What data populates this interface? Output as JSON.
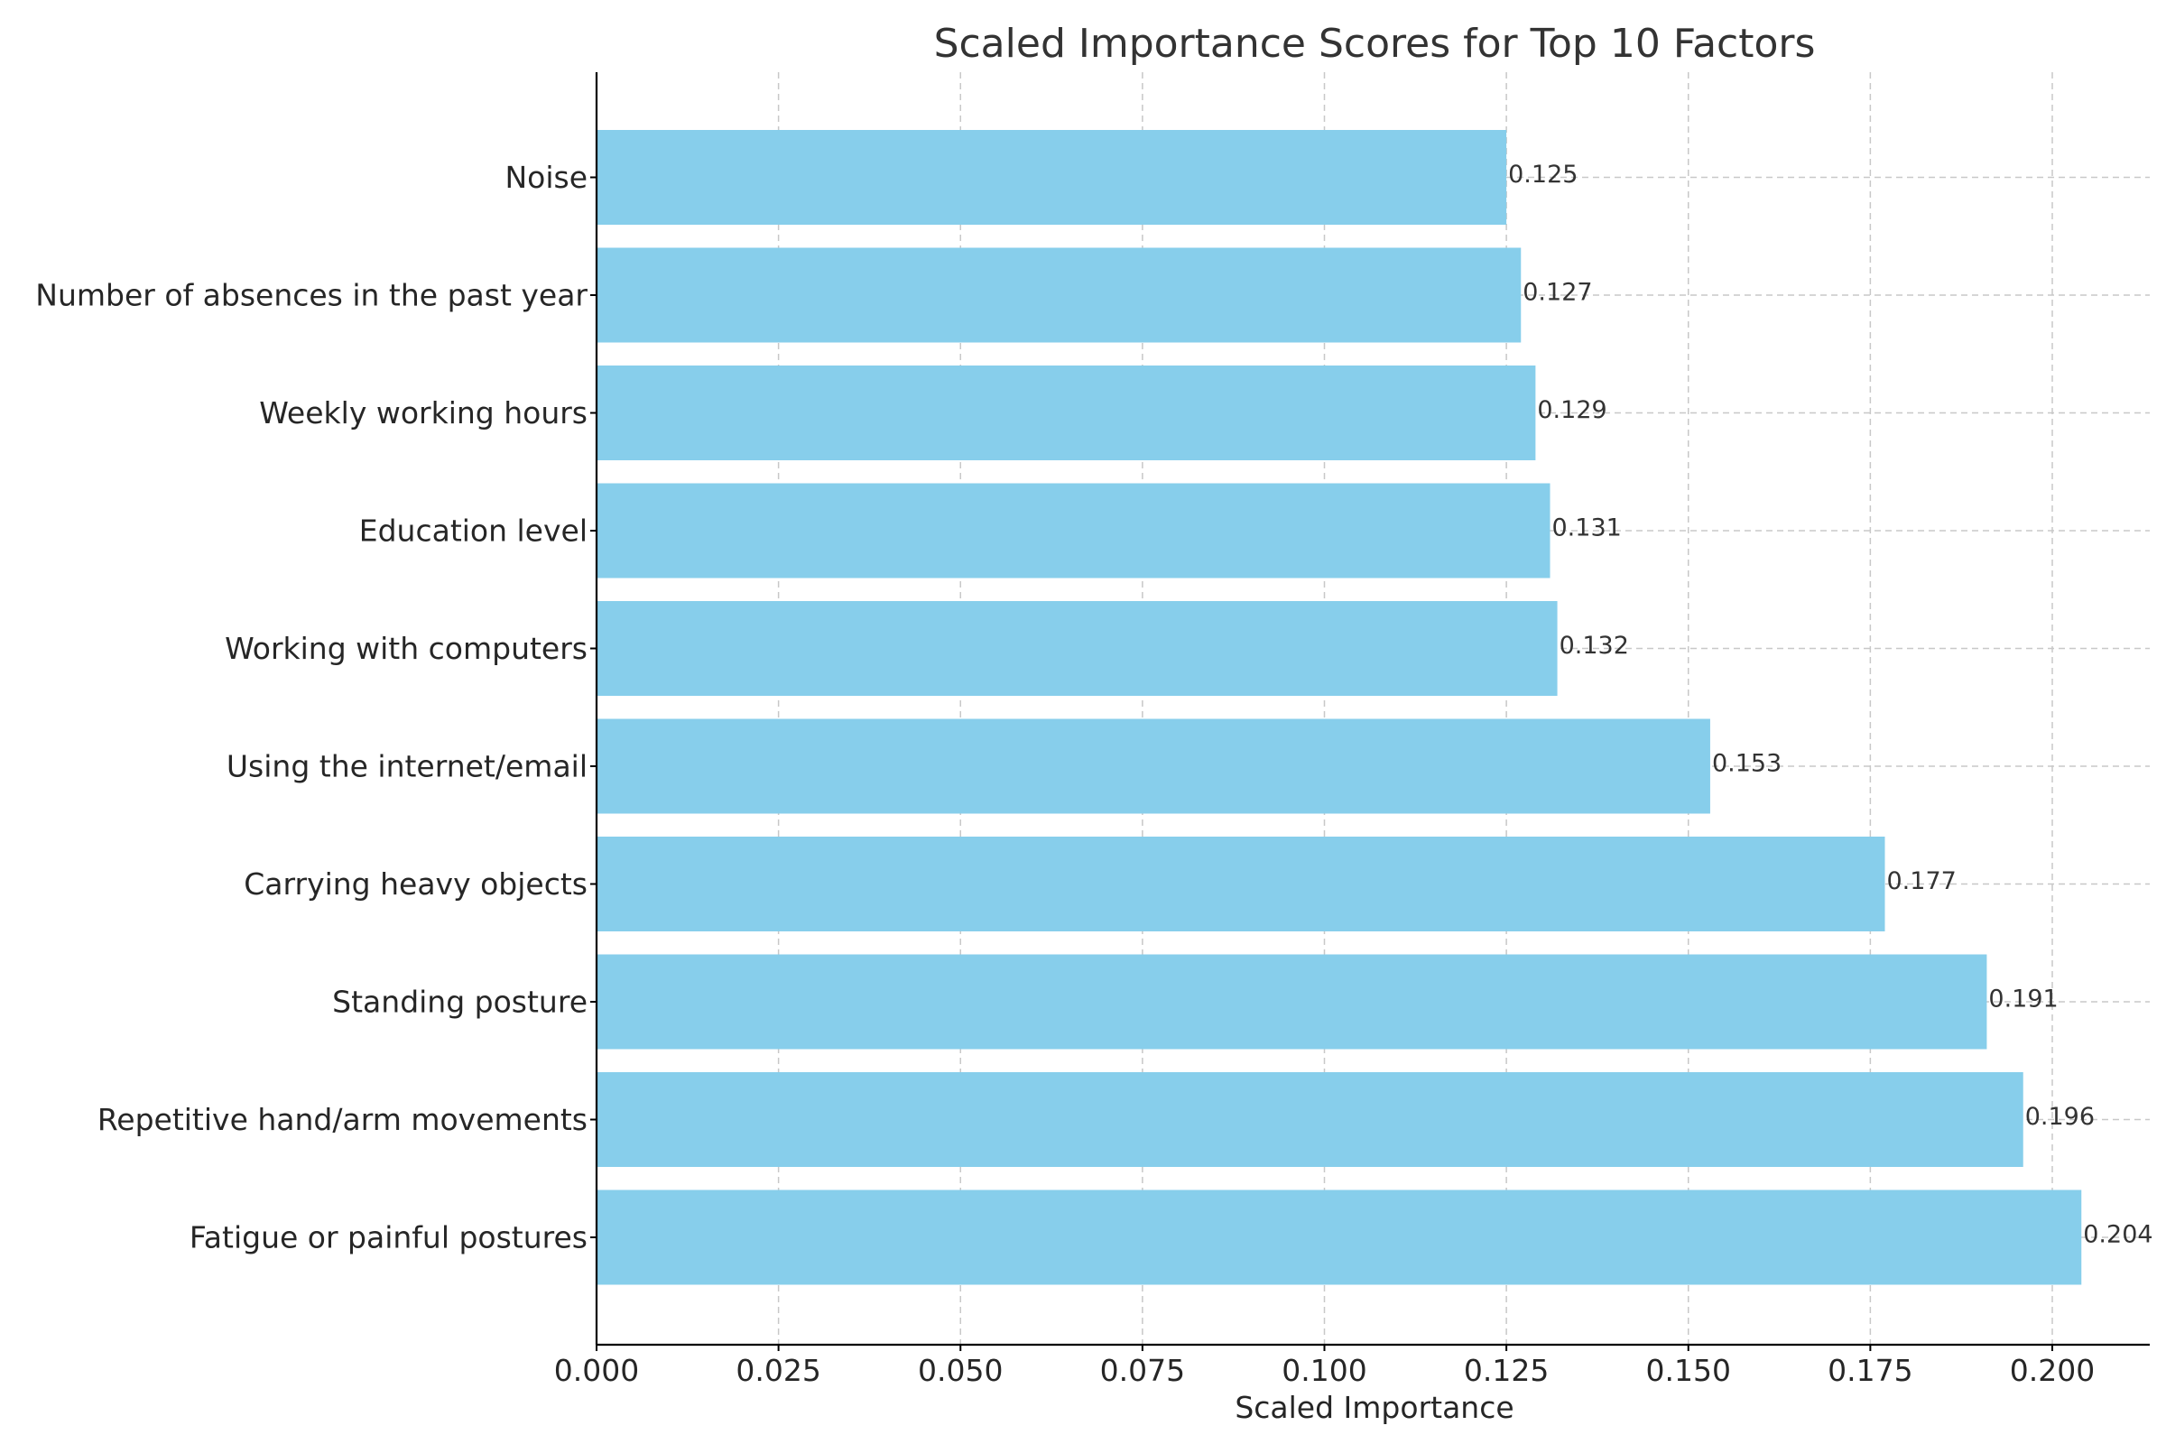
{
  "chart_data": {
    "type": "bar",
    "orientation": "horizontal",
    "title": "Scaled Importance Scores for Top 10 Factors",
    "xlabel": "Scaled Importance",
    "ylabel": "",
    "categories": [
      "Fatigue or painful postures",
      "Repetitive hand/arm movements",
      "Standing posture",
      "Carrying heavy objects",
      "Using the internet/email",
      "Working with computers",
      "Education level",
      "Weekly working hours",
      "Number of absences in the past year",
      "Noise"
    ],
    "values": [
      0.204,
      0.196,
      0.191,
      0.177,
      0.153,
      0.132,
      0.131,
      0.129,
      0.127,
      0.125
    ],
    "data_labels": [
      "0.204",
      "0.196",
      "0.191",
      "0.177",
      "0.153",
      "0.132",
      "0.131",
      "0.129",
      "0.127",
      "0.125"
    ],
    "xlim": [
      0,
      0.214
    ],
    "xticks": [
      0.0,
      0.025,
      0.05,
      0.075,
      0.1,
      0.125,
      0.15,
      0.175,
      0.2
    ],
    "xtick_labels": [
      "0.000",
      "0.025",
      "0.050",
      "0.075",
      "0.100",
      "0.125",
      "0.150",
      "0.175",
      "0.200"
    ],
    "grid": true,
    "grid_style": "dashed",
    "legend": false,
    "bar_color": "#87CEEB"
  }
}
